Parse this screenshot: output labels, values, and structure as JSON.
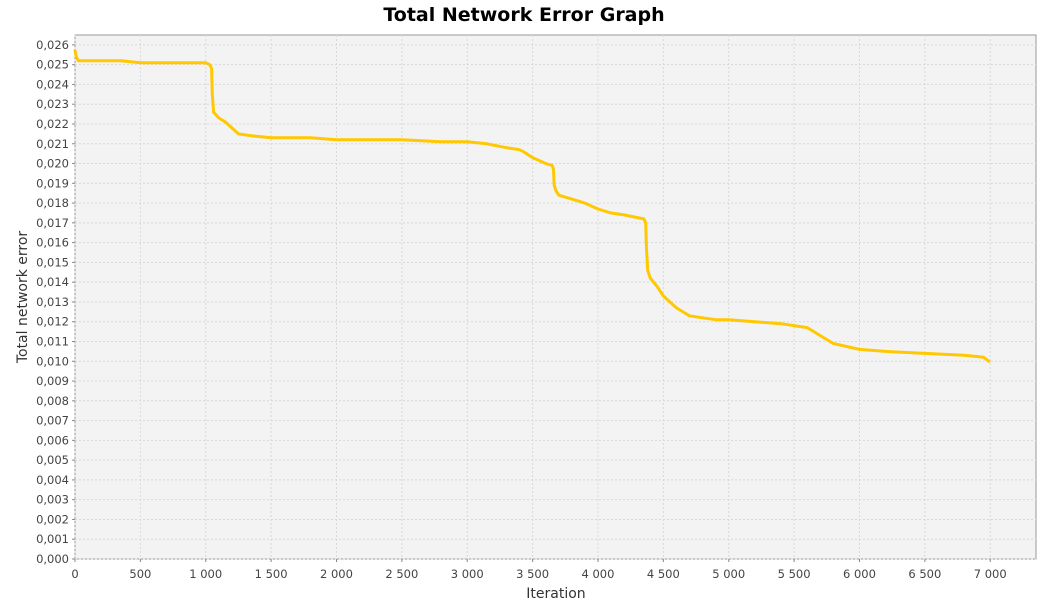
{
  "chart_data": {
    "type": "line",
    "title": "Total Network Error Graph",
    "xlabel": "Iteration",
    "ylabel": "Total network error",
    "xlim": [
      0,
      7350
    ],
    "ylim": [
      0,
      0.0265
    ],
    "grid": true,
    "x_ticks": [
      0,
      500,
      1000,
      1500,
      2000,
      2500,
      3000,
      3500,
      4000,
      4500,
      5000,
      5500,
      6000,
      6500,
      7000
    ],
    "x_tick_labels": [
      "0",
      "500",
      "1 000",
      "1 500",
      "2 000",
      "2 500",
      "3 000",
      "3 500",
      "4 000",
      "4 500",
      "5 000",
      "5 500",
      "6 000",
      "6 500",
      "7 000"
    ],
    "y_ticks": [
      0,
      0.001,
      0.002,
      0.003,
      0.004,
      0.005,
      0.006,
      0.007,
      0.008,
      0.009,
      0.01,
      0.011,
      0.012,
      0.013,
      0.014,
      0.015,
      0.016,
      0.017,
      0.018,
      0.019,
      0.02,
      0.021,
      0.022,
      0.023,
      0.024,
      0.025,
      0.026
    ],
    "y_tick_labels": [
      "0,000",
      "0,001",
      "0,002",
      "0,003",
      "0,004",
      "0,005",
      "0,006",
      "0,007",
      "0,008",
      "0,009",
      "0,010",
      "0,011",
      "0,012",
      "0,013",
      "0,014",
      "0,015",
      "0,016",
      "0,017",
      "0,018",
      "0,019",
      "0,020",
      "0,021",
      "0,022",
      "0,023",
      "0,024",
      "0,025",
      "0,026"
    ],
    "series": [
      {
        "name": "Total network error",
        "color": "#FFC800",
        "x": [
          0,
          10,
          25,
          100,
          350,
          500,
          700,
          900,
          1000,
          1030,
          1045,
          1050,
          1060,
          1100,
          1150,
          1200,
          1250,
          1350,
          1500,
          1800,
          2000,
          2300,
          2500,
          2800,
          3000,
          3150,
          3300,
          3400,
          3430,
          3500,
          3600,
          3650,
          3660,
          3665,
          3680,
          3700,
          3800,
          3900,
          4000,
          4100,
          4200,
          4350,
          4365,
          4370,
          4380,
          4400,
          4450,
          4500,
          4600,
          4700,
          4800,
          4900,
          5000,
          5200,
          5400,
          5600,
          5800,
          6000,
          6200,
          6500,
          6800,
          6950,
          6990
        ],
        "y": [
          0.0257,
          0.0254,
          0.0252,
          0.0252,
          0.0252,
          0.0251,
          0.0251,
          0.0251,
          0.0251,
          0.025,
          0.0248,
          0.0235,
          0.0226,
          0.0223,
          0.0221,
          0.0218,
          0.0215,
          0.0214,
          0.0213,
          0.0213,
          0.0212,
          0.0212,
          0.0212,
          0.0211,
          0.0211,
          0.021,
          0.0208,
          0.0207,
          0.0206,
          0.0203,
          0.02,
          0.0199,
          0.0197,
          0.0189,
          0.0186,
          0.0184,
          0.0182,
          0.018,
          0.0177,
          0.0175,
          0.0174,
          0.0172,
          0.017,
          0.0158,
          0.0146,
          0.0142,
          0.0138,
          0.0133,
          0.0127,
          0.0123,
          0.0122,
          0.0121,
          0.0121,
          0.012,
          0.0119,
          0.0117,
          0.0109,
          0.0106,
          0.0105,
          0.0104,
          0.0103,
          0.0102,
          0.01
        ]
      }
    ]
  }
}
